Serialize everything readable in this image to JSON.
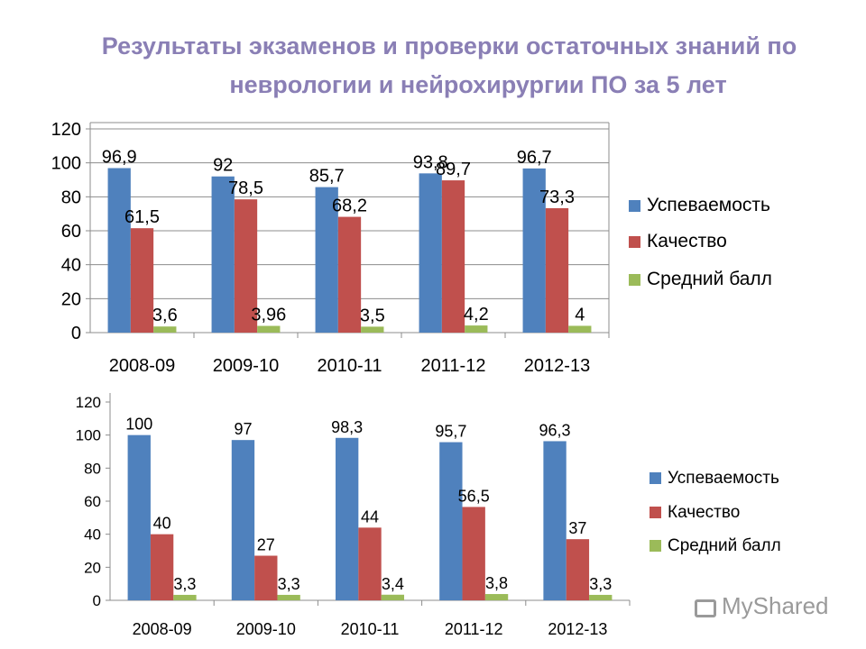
{
  "title": {
    "line1": "Результаты экзаменов  и проверки остаточных знаний по",
    "line2": "неврологии и нейрохирургии ПО за 5 лет"
  },
  "watermark": "MyShared",
  "chart_data": [
    {
      "type": "bar",
      "categories": [
        "2008-09",
        "2009-10",
        "2010-11",
        "2011-12",
        "2012-13"
      ],
      "series": [
        {
          "name": "Успеваемость",
          "color": "#4f81bd",
          "values": [
            96.9,
            92,
            85.7,
            93.8,
            96.7
          ],
          "labels": [
            "96,9",
            "92",
            "85,7",
            "93,8",
            "96,7"
          ]
        },
        {
          "name": "Качество",
          "color": "#c0504d",
          "values": [
            61.5,
            78.5,
            68.2,
            89.7,
            73.3
          ],
          "labels": [
            "61,5",
            "78,5",
            "68,2",
            "89,7",
            "73,3"
          ]
        },
        {
          "name": "Средний балл",
          "color": "#9bbb59",
          "values": [
            3.6,
            3.96,
            3.5,
            4.2,
            4
          ],
          "labels": [
            "3,6",
            "3,96",
            "3,5",
            "4,2",
            "4"
          ]
        }
      ],
      "yticks": [
        "0",
        "20",
        "40",
        "60",
        "80",
        "100",
        "120"
      ],
      "ylim": [
        0,
        120
      ],
      "grid": true,
      "legend": "right"
    },
    {
      "type": "bar",
      "categories": [
        "2008-09",
        "2009-10",
        "2010-11",
        "2011-12",
        "2012-13"
      ],
      "series": [
        {
          "name": "Успеваемость",
          "color": "#4f81bd",
          "values": [
            100,
            97,
            98.3,
            95.7,
            96.3
          ],
          "labels": [
            "100",
            "97",
            "98,3",
            "95,7",
            "96,3"
          ]
        },
        {
          "name": "Качество",
          "color": "#c0504d",
          "values": [
            40,
            27,
            44,
            56.5,
            37
          ],
          "labels": [
            "40",
            "27",
            "44",
            "56,5",
            "37"
          ]
        },
        {
          "name": "Средний балл",
          "color": "#9bbb59",
          "values": [
            3.3,
            3.3,
            3.4,
            3.8,
            3.3
          ],
          "labels": [
            "3,3",
            "3,3",
            "3,4",
            "3,8",
            "3,3"
          ]
        }
      ],
      "yticks": [
        "0",
        "20",
        "40",
        "60",
        "80",
        "100",
        "120"
      ],
      "ylim": [
        0,
        120
      ],
      "grid": false,
      "legend": "right"
    }
  ]
}
